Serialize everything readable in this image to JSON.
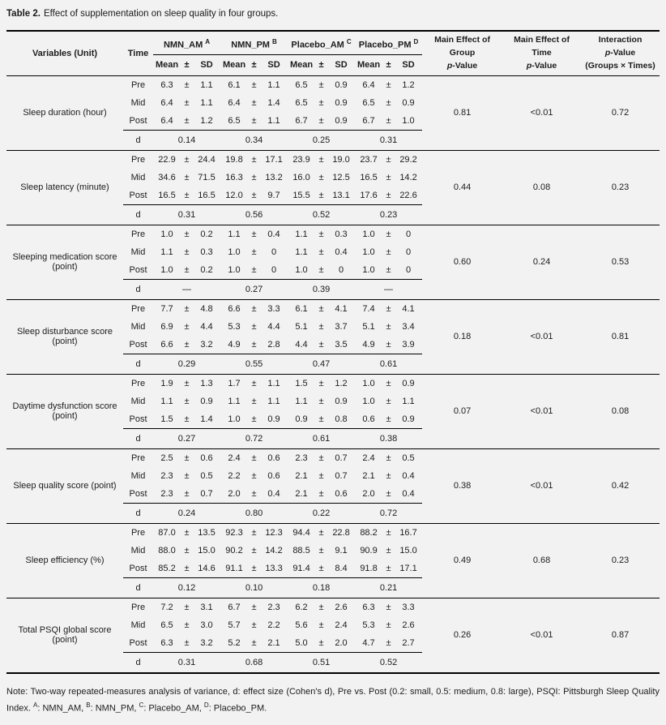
{
  "caption": {
    "label": "Table 2.",
    "text": "Effect of supplementation on sleep quality in four groups."
  },
  "colors": {
    "page_background": "#f2f2f3",
    "text": "#1c1c1c",
    "rule": "#000000"
  },
  "table": {
    "pm": "±",
    "d_label": "d",
    "header": {
      "variables": "Variables (Unit)",
      "time": "Time",
      "groups": [
        {
          "name": "NMN_AM",
          "sup": "A"
        },
        {
          "name": "NMN_PM",
          "sup": "B"
        },
        {
          "name": "Placebo_AM",
          "sup": "C"
        },
        {
          "name": "Placebo_PM",
          "sup": "D"
        }
      ],
      "subcols": [
        "Mean",
        "±",
        "SD"
      ],
      "p_group_line1": "Main Effect of Group",
      "p_time_line1": "Main Effect of Time",
      "interaction_line1": "Interaction",
      "interaction_line3": "(Groups × Times)",
      "p_italic": "p",
      "p_rest": "-Value"
    },
    "blocks": [
      {
        "variable": "Sleep duration (hour)",
        "rows": [
          {
            "time": "Pre",
            "cells": [
              [
                "6.3",
                "1.1"
              ],
              [
                "6.1",
                "1.1"
              ],
              [
                "6.5",
                "0.9"
              ],
              [
                "6.4",
                "1.2"
              ]
            ]
          },
          {
            "time": "Mid",
            "cells": [
              [
                "6.4",
                "1.1"
              ],
              [
                "6.4",
                "1.4"
              ],
              [
                "6.5",
                "0.9"
              ],
              [
                "6.5",
                "0.9"
              ]
            ]
          },
          {
            "time": "Post",
            "cells": [
              [
                "6.4",
                "1.2"
              ],
              [
                "6.5",
                "1.1"
              ],
              [
                "6.7",
                "0.9"
              ],
              [
                "6.7",
                "1.0"
              ]
            ]
          }
        ],
        "d": [
          "0.14",
          "0.34",
          "0.25",
          "0.31"
        ],
        "p_group": "0.81",
        "p_time": "<0.01",
        "p_interaction": "0.72"
      },
      {
        "variable": "Sleep latency (minute)",
        "rows": [
          {
            "time": "Pre",
            "cells": [
              [
                "22.9",
                "24.4"
              ],
              [
                "19.8",
                "17.1"
              ],
              [
                "23.9",
                "19.0"
              ],
              [
                "23.7",
                "29.2"
              ]
            ]
          },
          {
            "time": "Mid",
            "cells": [
              [
                "34.6",
                "71.5"
              ],
              [
                "16.3",
                "13.2"
              ],
              [
                "16.0",
                "12.5"
              ],
              [
                "16.5",
                "14.2"
              ]
            ]
          },
          {
            "time": "Post",
            "cells": [
              [
                "16.5",
                "16.5"
              ],
              [
                "12.0",
                "9.7"
              ],
              [
                "15.5",
                "13.1"
              ],
              [
                "17.6",
                "22.6"
              ]
            ]
          }
        ],
        "d": [
          "0.31",
          "0.56",
          "0.52",
          "0.23"
        ],
        "p_group": "0.44",
        "p_time": "0.08",
        "p_interaction": "0.23"
      },
      {
        "variable": "Sleeping medication score (point)",
        "rows": [
          {
            "time": "Pre",
            "cells": [
              [
                "1.0",
                "0.2"
              ],
              [
                "1.1",
                "0.4"
              ],
              [
                "1.1",
                "0.3"
              ],
              [
                "1.0",
                "0"
              ]
            ]
          },
          {
            "time": "Mid",
            "cells": [
              [
                "1.1",
                "0.3"
              ],
              [
                "1.0",
                "0"
              ],
              [
                "1.1",
                "0.4"
              ],
              [
                "1.0",
                "0"
              ]
            ]
          },
          {
            "time": "Post",
            "cells": [
              [
                "1.0",
                "0.2"
              ],
              [
                "1.0",
                "0"
              ],
              [
                "1.0",
                "0"
              ],
              [
                "1.0",
                "0"
              ]
            ]
          }
        ],
        "d": [
          "—",
          "0.27",
          "0.39",
          "—"
        ],
        "p_group": "0.60",
        "p_time": "0.24",
        "p_interaction": "0.53"
      },
      {
        "variable": "Sleep disturbance score (point)",
        "rows": [
          {
            "time": "Pre",
            "cells": [
              [
                "7.7",
                "4.8"
              ],
              [
                "6.6",
                "3.3"
              ],
              [
                "6.1",
                "4.1"
              ],
              [
                "7.4",
                "4.1"
              ]
            ]
          },
          {
            "time": "Mid",
            "cells": [
              [
                "6.9",
                "4.4"
              ],
              [
                "5.3",
                "4.4"
              ],
              [
                "5.1",
                "3.7"
              ],
              [
                "5.1",
                "3.4"
              ]
            ]
          },
          {
            "time": "Post",
            "cells": [
              [
                "6.6",
                "3.2"
              ],
              [
                "4.9",
                "2.8"
              ],
              [
                "4.4",
                "3.5"
              ],
              [
                "4.9",
                "3.9"
              ]
            ]
          }
        ],
        "d": [
          "0.29",
          "0.55",
          "0.47",
          "0.61"
        ],
        "p_group": "0.18",
        "p_time": "<0.01",
        "p_interaction": "0.81"
      },
      {
        "variable": "Daytime dysfunction score (point)",
        "rows": [
          {
            "time": "Pre",
            "cells": [
              [
                "1.9",
                "1.3"
              ],
              [
                "1.7",
                "1.1"
              ],
              [
                "1.5",
                "1.2"
              ],
              [
                "1.0",
                "0.9"
              ]
            ]
          },
          {
            "time": "Mid",
            "cells": [
              [
                "1.1",
                "0.9"
              ],
              [
                "1.1",
                "1.1"
              ],
              [
                "1.1",
                "0.9"
              ],
              [
                "1.0",
                "1.1"
              ]
            ]
          },
          {
            "time": "Post",
            "cells": [
              [
                "1.5",
                "1.4"
              ],
              [
                "1.0",
                "0.9"
              ],
              [
                "0.9",
                "0.8"
              ],
              [
                "0.6",
                "0.9"
              ]
            ]
          }
        ],
        "d": [
          "0.27",
          "0.72",
          "0.61",
          "0.38"
        ],
        "p_group": "0.07",
        "p_time": "<0.01",
        "p_interaction": "0.08"
      },
      {
        "variable": "Sleep quality score (point)",
        "rows": [
          {
            "time": "Pre",
            "cells": [
              [
                "2.5",
                "0.6"
              ],
              [
                "2.4",
                "0.6"
              ],
              [
                "2.3",
                "0.7"
              ],
              [
                "2.4",
                "0.5"
              ]
            ]
          },
          {
            "time": "Mid",
            "cells": [
              [
                "2.3",
                "0.5"
              ],
              [
                "2.2",
                "0.6"
              ],
              [
                "2.1",
                "0.7"
              ],
              [
                "2.1",
                "0.4"
              ]
            ]
          },
          {
            "time": "Post",
            "cells": [
              [
                "2.3",
                "0.7"
              ],
              [
                "2.0",
                "0.4"
              ],
              [
                "2.1",
                "0.6"
              ],
              [
                "2.0",
                "0.4"
              ]
            ]
          }
        ],
        "d": [
          "0.24",
          "0.80",
          "0.22",
          "0.72"
        ],
        "p_group": "0.38",
        "p_time": "<0.01",
        "p_interaction": "0.42"
      },
      {
        "variable": "Sleep efficiency (%)",
        "rows": [
          {
            "time": "Pre",
            "cells": [
              [
                "87.0",
                "13.5"
              ],
              [
                "92.3",
                "12.3"
              ],
              [
                "94.4",
                "22.8"
              ],
              [
                "88.2",
                "16.7"
              ]
            ]
          },
          {
            "time": "Mid",
            "cells": [
              [
                "88.0",
                "15.0"
              ],
              [
                "90.2",
                "14.2"
              ],
              [
                "88.5",
                "9.1"
              ],
              [
                "90.9",
                "15.0"
              ]
            ]
          },
          {
            "time": "Post",
            "cells": [
              [
                "85.2",
                "14.6"
              ],
              [
                "91.1",
                "13.3"
              ],
              [
                "91.4",
                "8.4"
              ],
              [
                "91.8",
                "17.1"
              ]
            ]
          }
        ],
        "d": [
          "0.12",
          "0.10",
          "0.18",
          "0.21"
        ],
        "p_group": "0.49",
        "p_time": "0.68",
        "p_interaction": "0.23"
      },
      {
        "variable": "Total PSQI global score (point)",
        "rows": [
          {
            "time": "Pre",
            "cells": [
              [
                "7.2",
                "3.1"
              ],
              [
                "6.7",
                "2.3"
              ],
              [
                "6.2",
                "2.6"
              ],
              [
                "6.3",
                "3.3"
              ]
            ]
          },
          {
            "time": "Mid",
            "cells": [
              [
                "6.5",
                "3.0"
              ],
              [
                "5.7",
                "2.2"
              ],
              [
                "5.6",
                "2.4"
              ],
              [
                "5.3",
                "2.6"
              ]
            ]
          },
          {
            "time": "Post",
            "cells": [
              [
                "6.3",
                "3.2"
              ],
              [
                "5.2",
                "2.1"
              ],
              [
                "5.0",
                "2.0"
              ],
              [
                "4.7",
                "2.7"
              ]
            ]
          }
        ],
        "d": [
          "0.31",
          "0.68",
          "0.51",
          "0.52"
        ],
        "p_group": "0.26",
        "p_time": "<0.01",
        "p_interaction": "0.87"
      }
    ]
  },
  "note": {
    "text": "Note: Two-way repeated-measures analysis of variance, d: effect size (Cohen's d), Pre vs. Post (0.2: small, 0.5: medium, 0.8: large), PSQI: Pittsburgh Sleep Quality Index.",
    "legend": [
      {
        "sup": "A",
        "text": ": NMN_AM, "
      },
      {
        "sup": "B",
        "text": ": NMN_PM, "
      },
      {
        "sup": "C",
        "text": ": Placebo_AM, "
      },
      {
        "sup": "D",
        "text": ": Placebo_PM."
      }
    ]
  }
}
